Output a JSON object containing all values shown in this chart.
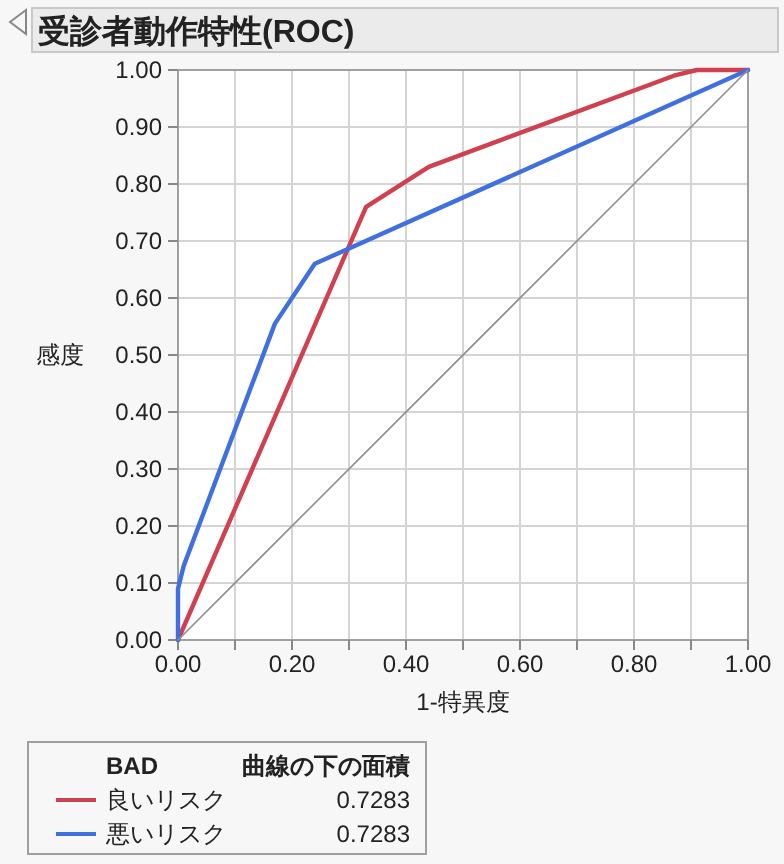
{
  "chart_data": {
    "type": "line",
    "title": "受診者動作特性(ROC)",
    "xlabel": "1-特異度",
    "ylabel": "感度",
    "legend_title": "BAD",
    "annotations": [
      "曲線の下の面積",
      "0.7283",
      "0.7283"
    ],
    "xlim": [
      0,
      1
    ],
    "ylim": [
      0,
      1
    ],
    "xticks": [
      {
        "value": 0,
        "label": "0.00"
      },
      {
        "value": 0.1,
        "label": null
      },
      {
        "value": 0.2,
        "label": "0.20"
      },
      {
        "value": 0.3,
        "label": null
      },
      {
        "value": 0.4,
        "label": "0.40"
      },
      {
        "value": 0.5,
        "label": null
      },
      {
        "value": 0.6,
        "label": "0.60"
      },
      {
        "value": 0.7,
        "label": null
      },
      {
        "value": 0.8,
        "label": "0.80"
      },
      {
        "value": 0.9,
        "label": null
      },
      {
        "value": 1,
        "label": "1.00"
      }
    ],
    "yticks": [
      {
        "value": 0,
        "label": "0.00"
      },
      {
        "value": 0.1,
        "label": "0.10"
      },
      {
        "value": 0.2,
        "label": "0.20"
      },
      {
        "value": 0.3,
        "label": "0.30"
      },
      {
        "value": 0.4,
        "label": "0.40"
      },
      {
        "value": 0.5,
        "label": "0.50"
      },
      {
        "value": 0.6,
        "label": "0.60"
      },
      {
        "value": 0.7,
        "label": "0.70"
      },
      {
        "value": 0.8,
        "label": "0.80"
      },
      {
        "value": 0.9,
        "label": "0.90"
      },
      {
        "value": 1,
        "label": "1.00"
      }
    ],
    "grid": true,
    "legend": "bottom left",
    "marker": "none",
    "line_style": "solid",
    "series": [
      {
        "name": "良いリスク",
        "color": "#d0404f",
        "x": [
          0,
          0.33,
          0.44,
          0.87,
          0.91,
          1
        ],
        "values": [
          0,
          0.76,
          0.83,
          0.99,
          1,
          1
        ]
      },
      {
        "name": "悪いリスク",
        "color": "#4070e0",
        "x": [
          0,
          0,
          0.01,
          0.17,
          0.24,
          1
        ],
        "values": [
          0,
          0.09,
          0.13,
          0.555,
          0.66,
          1
        ]
      },
      {
        "color": "#909090",
        "x": [
          0,
          1
        ],
        "values": [
          0,
          1
        ]
      }
    ]
  }
}
